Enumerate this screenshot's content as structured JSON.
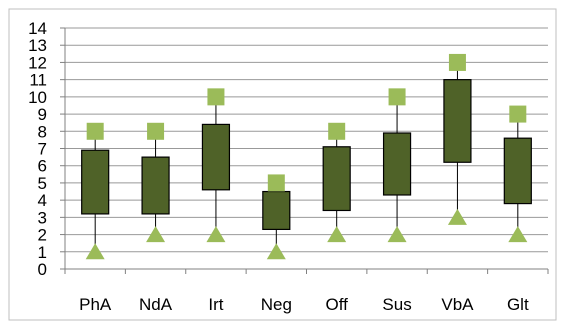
{
  "chart_data": {
    "type": "box",
    "title": "",
    "xlabel": "",
    "ylabel": "",
    "categories": [
      "PhA",
      "NdA",
      "Irt",
      "Neg",
      "Off",
      "Sus",
      "VbA",
      "Glt"
    ],
    "ylim": [
      0,
      14
    ],
    "yticks": [
      0,
      1,
      2,
      3,
      4,
      5,
      6,
      7,
      8,
      9,
      10,
      11,
      12,
      13,
      14
    ],
    "grid": true,
    "series": [
      {
        "stat": "max",
        "values": [
          8,
          8,
          10,
          5,
          8,
          10,
          12,
          9
        ]
      },
      {
        "stat": "q3",
        "values": [
          6.9,
          6.5,
          8.4,
          4.5,
          7.1,
          7.9,
          11,
          7.6
        ]
      },
      {
        "stat": "q1",
        "values": [
          3.2,
          3.2,
          4.6,
          2.3,
          3.4,
          4.3,
          6.2,
          3.8
        ]
      },
      {
        "stat": "min",
        "values": [
          1,
          2,
          2,
          1,
          2,
          2,
          3,
          2
        ]
      }
    ],
    "colors": {
      "box_fill": "#4f6228",
      "box_stroke": "#000000",
      "max_marker": "#9bbb59",
      "min_marker": "#9bbb59",
      "gridline": "#999999",
      "border": "#bfbfbf"
    }
  }
}
